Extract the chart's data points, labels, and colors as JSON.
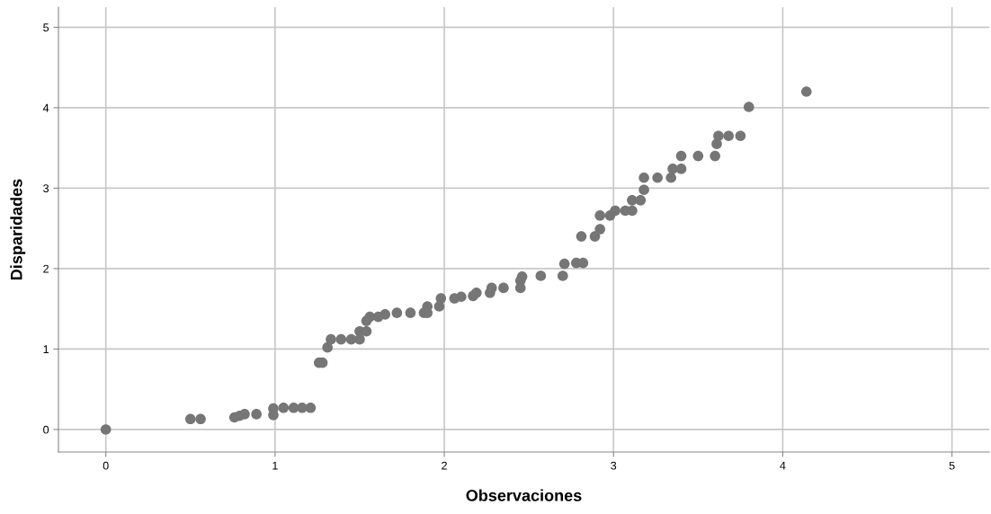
{
  "chart_data": {
    "type": "scatter",
    "xlabel": "Observaciones",
    "ylabel": "Disparidades",
    "xlim": [
      -0.28,
      5.22
    ],
    "ylim": [
      -0.28,
      5.25
    ],
    "xticks": [
      0,
      1,
      2,
      3,
      4,
      5
    ],
    "yticks": [
      0,
      1,
      2,
      3,
      4,
      5
    ],
    "grid": true,
    "marker": "circle",
    "series": [
      {
        "color": "#767676",
        "x": [
          0,
          0.5,
          0.56,
          0.76,
          0.79,
          0.82,
          0.89,
          0.99,
          0.99,
          1.05,
          1.11,
          1.16,
          1.21,
          1.26,
          1.28,
          1.31,
          1.33,
          1.39,
          1.45,
          1.5,
          1.5,
          1.54,
          1.54,
          1.56,
          1.61,
          1.65,
          1.72,
          1.8,
          1.88,
          1.9,
          1.9,
          1.97,
          1.98,
          2.06,
          2.1,
          2.17,
          2.19,
          2.27,
          2.28,
          2.35,
          2.45,
          2.45,
          2.46,
          2.57,
          2.7,
          2.71,
          2.78,
          2.82,
          2.81,
          2.89,
          2.92,
          2.92,
          2.98,
          3.01,
          3.07,
          3.11,
          3.11,
          3.16,
          3.18,
          3.18,
          3.26,
          3.34,
          3.35,
          3.4,
          3.4,
          3.5,
          3.6,
          3.61,
          3.62,
          3.68,
          3.75,
          3.8,
          4.14
        ],
        "values": [
          0,
          0.13,
          0.13,
          0.15,
          0.17,
          0.19,
          0.19,
          0.18,
          0.26,
          0.27,
          0.27,
          0.27,
          0.27,
          0.83,
          0.83,
          1.02,
          1.12,
          1.12,
          1.12,
          1.12,
          1.22,
          1.22,
          1.35,
          1.4,
          1.4,
          1.43,
          1.45,
          1.45,
          1.45,
          1.45,
          1.53,
          1.53,
          1.63,
          1.63,
          1.65,
          1.66,
          1.7,
          1.7,
          1.76,
          1.76,
          1.76,
          1.85,
          1.9,
          1.91,
          1.91,
          2.06,
          2.07,
          2.07,
          2.4,
          2.4,
          2.49,
          2.66,
          2.66,
          2.72,
          2.72,
          2.72,
          2.85,
          2.85,
          2.98,
          3.13,
          3.13,
          3.13,
          3.24,
          3.24,
          3.4,
          3.4,
          3.4,
          3.55,
          3.65,
          3.65,
          3.65,
          4.01,
          4.2
        ]
      }
    ]
  }
}
